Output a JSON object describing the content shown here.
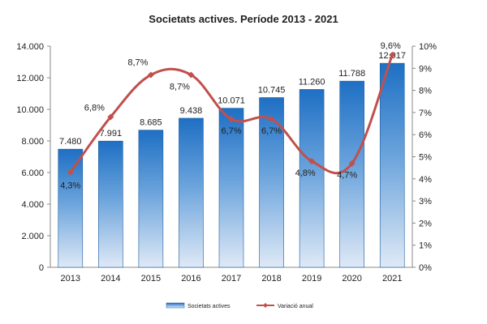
{
  "chart_data": {
    "type": "bar",
    "title": "Societats actives. Període 2013 - 2021",
    "categories": [
      "2013",
      "2014",
      "2015",
      "2016",
      "2017",
      "2018",
      "2019",
      "2020",
      "2021"
    ],
    "series": [
      {
        "name": "Societats actives",
        "type": "bar",
        "axis": "left",
        "values": [
          7480,
          7991,
          8685,
          9438,
          10071,
          10745,
          11260,
          11788,
          12917
        ],
        "labels": [
          "7.480",
          "7.991",
          "8.685",
          "9.438",
          "10.071",
          "10.745",
          "11.260",
          "11.788",
          "12.917"
        ],
        "color": "#2f7fcd"
      },
      {
        "name": "Variació anual",
        "type": "line",
        "axis": "right",
        "values": [
          4.3,
          6.8,
          8.7,
          8.7,
          6.7,
          6.7,
          4.8,
          4.7,
          9.6
        ],
        "labels": [
          "4,3%",
          "6,8%",
          "8,7%",
          "8,7%",
          "6,7%",
          "6,7%",
          "4,8%",
          "4,7%",
          "9,6%"
        ],
        "color": "#c0504d"
      }
    ],
    "y_left": {
      "range": [
        0,
        14000
      ],
      "ticks": [
        0,
        2000,
        4000,
        6000,
        8000,
        10000,
        12000,
        14000
      ],
      "tick_labels": [
        "0",
        "2.000",
        "4.000",
        "6.000",
        "8.000",
        "10.000",
        "12.000",
        "14.000"
      ]
    },
    "y_right": {
      "range": [
        0,
        10
      ],
      "ticks": [
        0,
        1,
        2,
        3,
        4,
        5,
        6,
        7,
        8,
        9,
        10
      ],
      "tick_labels": [
        "0%",
        "1%",
        "2%",
        "3%",
        "4%",
        "5%",
        "6%",
        "7%",
        "8%",
        "9%",
        "10%"
      ]
    },
    "grid": false,
    "legend": "bottom"
  }
}
